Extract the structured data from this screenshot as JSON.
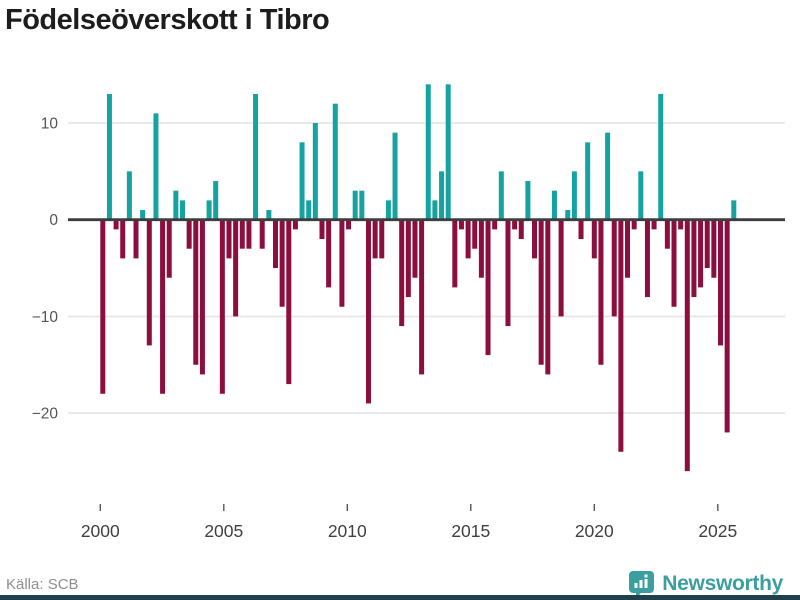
{
  "title": "Födelseöverskott i Tibro",
  "source": "Källa: SCB",
  "brand": {
    "name": "Newsworthy",
    "icon": "bar-chart-pin-icon"
  },
  "colors": {
    "positive_bar": "#14a3a1",
    "negative_bar": "#8c0e3e",
    "zero_line": "#3d3d3d",
    "gridline": "#e4e4e4",
    "axis_text": "#555555",
    "x_tick_text": "#404040",
    "title_text": "#1d1d1d",
    "source_text": "#8f8f8f",
    "brand_teal": "#3b9fa0",
    "footer_band": "#20414b"
  },
  "chart_data": {
    "type": "bar",
    "title": "Födelseöverskott i Tibro",
    "x_tick_labels": [
      "2000",
      "2005",
      "2010",
      "2015",
      "2020",
      "2025"
    ],
    "y_ticks": [
      10,
      0,
      -10,
      -20
    ],
    "ylim": [
      -27,
      15
    ],
    "grid": true,
    "legend": false,
    "values": [
      -18,
      13,
      -1,
      -4,
      5,
      -4,
      1,
      -13,
      11,
      -18,
      -6,
      3,
      2,
      -3,
      -15,
      -16,
      2,
      4,
      -18,
      -4,
      -10,
      -3,
      -3,
      13,
      -3,
      1,
      -5,
      -9,
      -17,
      -1,
      8,
      2,
      10,
      -2,
      -7,
      12,
      -9,
      -1,
      3,
      3,
      -19,
      -4,
      -4,
      2,
      9,
      -11,
      -8,
      -6,
      -16,
      14,
      2,
      5,
      14,
      -7,
      -1,
      -4,
      -3,
      -6,
      -14,
      -1,
      5,
      -11,
      -1,
      -2,
      4,
      -4,
      -15,
      -16,
      3,
      -10,
      1,
      5,
      -2,
      8,
      -4,
      -15,
      9,
      -10,
      -24,
      -6,
      -1,
      5,
      -8,
      -1,
      13,
      -3,
      -9,
      -1,
      -26,
      -8,
      -7,
      -5,
      -6,
      -13,
      -22,
      2
    ]
  }
}
